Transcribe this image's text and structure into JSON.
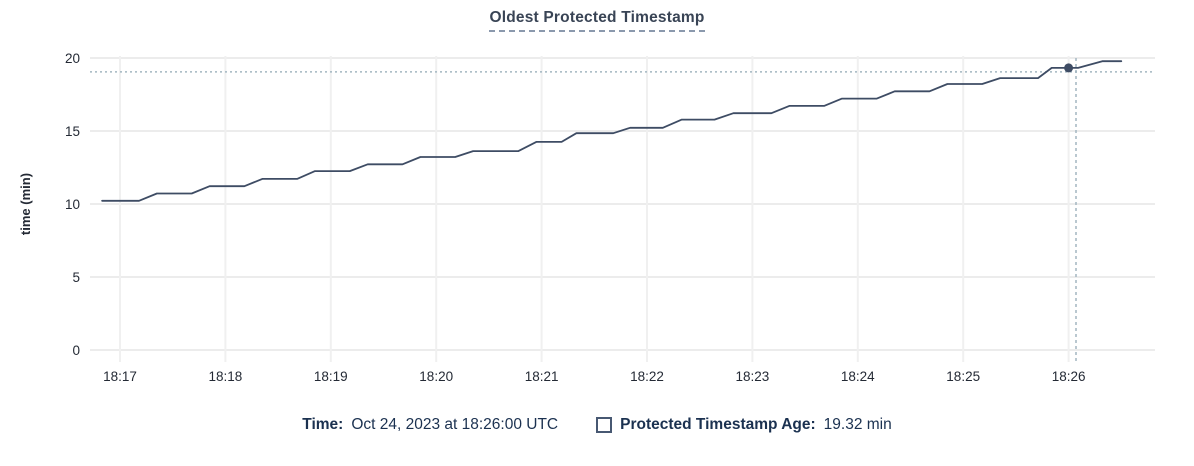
{
  "header": {
    "title": "Oldest Protected Timestamp"
  },
  "footer": {
    "time_label": "Time:",
    "time_value": "Oct 24, 2023 at 18:26:00 UTC",
    "series_label": "Protected Timestamp Age:",
    "series_value": "19.32 min"
  },
  "colors": {
    "line": "#3e4c64",
    "dot": "#3e4c64",
    "grid_h": "#ececec",
    "grid_v": "#f0f0f0",
    "guide": "#a3b6c1",
    "tick_text": "#242a35",
    "axis_label_text": "#242a35",
    "title_text": "#394455",
    "footer_text": "#1b3150",
    "swatch_border": "#475872",
    "background": "#ffffff"
  },
  "chart_data": {
    "type": "line",
    "title": "Oldest Protected Timestamp",
    "xlabel": "",
    "ylabel": "time (min)",
    "ylim": [
      0,
      20
    ],
    "yticks": [
      0,
      5,
      10,
      15,
      20
    ],
    "xtick_labels": [
      "18:17",
      "18:18",
      "18:19",
      "18:20",
      "18:21",
      "18:22",
      "18:23",
      "18:24",
      "18:25",
      "18:26"
    ],
    "x_unit": "minutes after 18:17:00 UTC",
    "grid": true,
    "legend_position": "bottom",
    "series": [
      {
        "name": "Protected Timestamp Age",
        "unit": "min",
        "points": [
          [
            -0.17,
            10.22
          ],
          [
            0.18,
            10.22
          ],
          [
            0.35,
            10.72
          ],
          [
            0.68,
            10.72
          ],
          [
            0.85,
            11.22
          ],
          [
            1.18,
            11.22
          ],
          [
            1.35,
            11.72
          ],
          [
            1.68,
            11.72
          ],
          [
            1.85,
            12.25
          ],
          [
            2.18,
            12.25
          ],
          [
            2.35,
            12.72
          ],
          [
            2.68,
            12.72
          ],
          [
            2.85,
            13.22
          ],
          [
            3.18,
            13.22
          ],
          [
            3.35,
            13.62
          ],
          [
            3.78,
            13.62
          ],
          [
            3.95,
            14.25
          ],
          [
            4.19,
            14.25
          ],
          [
            4.33,
            14.85
          ],
          [
            4.68,
            14.85
          ],
          [
            4.84,
            15.22
          ],
          [
            5.15,
            15.22
          ],
          [
            5.33,
            15.78
          ],
          [
            5.64,
            15.78
          ],
          [
            5.82,
            16.22
          ],
          [
            6.18,
            16.22
          ],
          [
            6.35,
            16.72
          ],
          [
            6.68,
            16.72
          ],
          [
            6.85,
            17.22
          ],
          [
            7.18,
            17.22
          ],
          [
            7.35,
            17.72
          ],
          [
            7.68,
            17.72
          ],
          [
            7.85,
            18.22
          ],
          [
            8.18,
            18.22
          ],
          [
            8.35,
            18.62
          ],
          [
            8.71,
            18.62
          ],
          [
            8.84,
            19.32
          ],
          [
            9.09,
            19.32
          ],
          [
            9.32,
            19.78
          ],
          [
            9.5,
            19.78
          ]
        ]
      }
    ],
    "crosshair": {
      "hover_time": "18:26:00",
      "x_minutes": 9.0,
      "value": 19.32,
      "hline_value": 19.05,
      "vline_minutes": 9.07
    }
  }
}
